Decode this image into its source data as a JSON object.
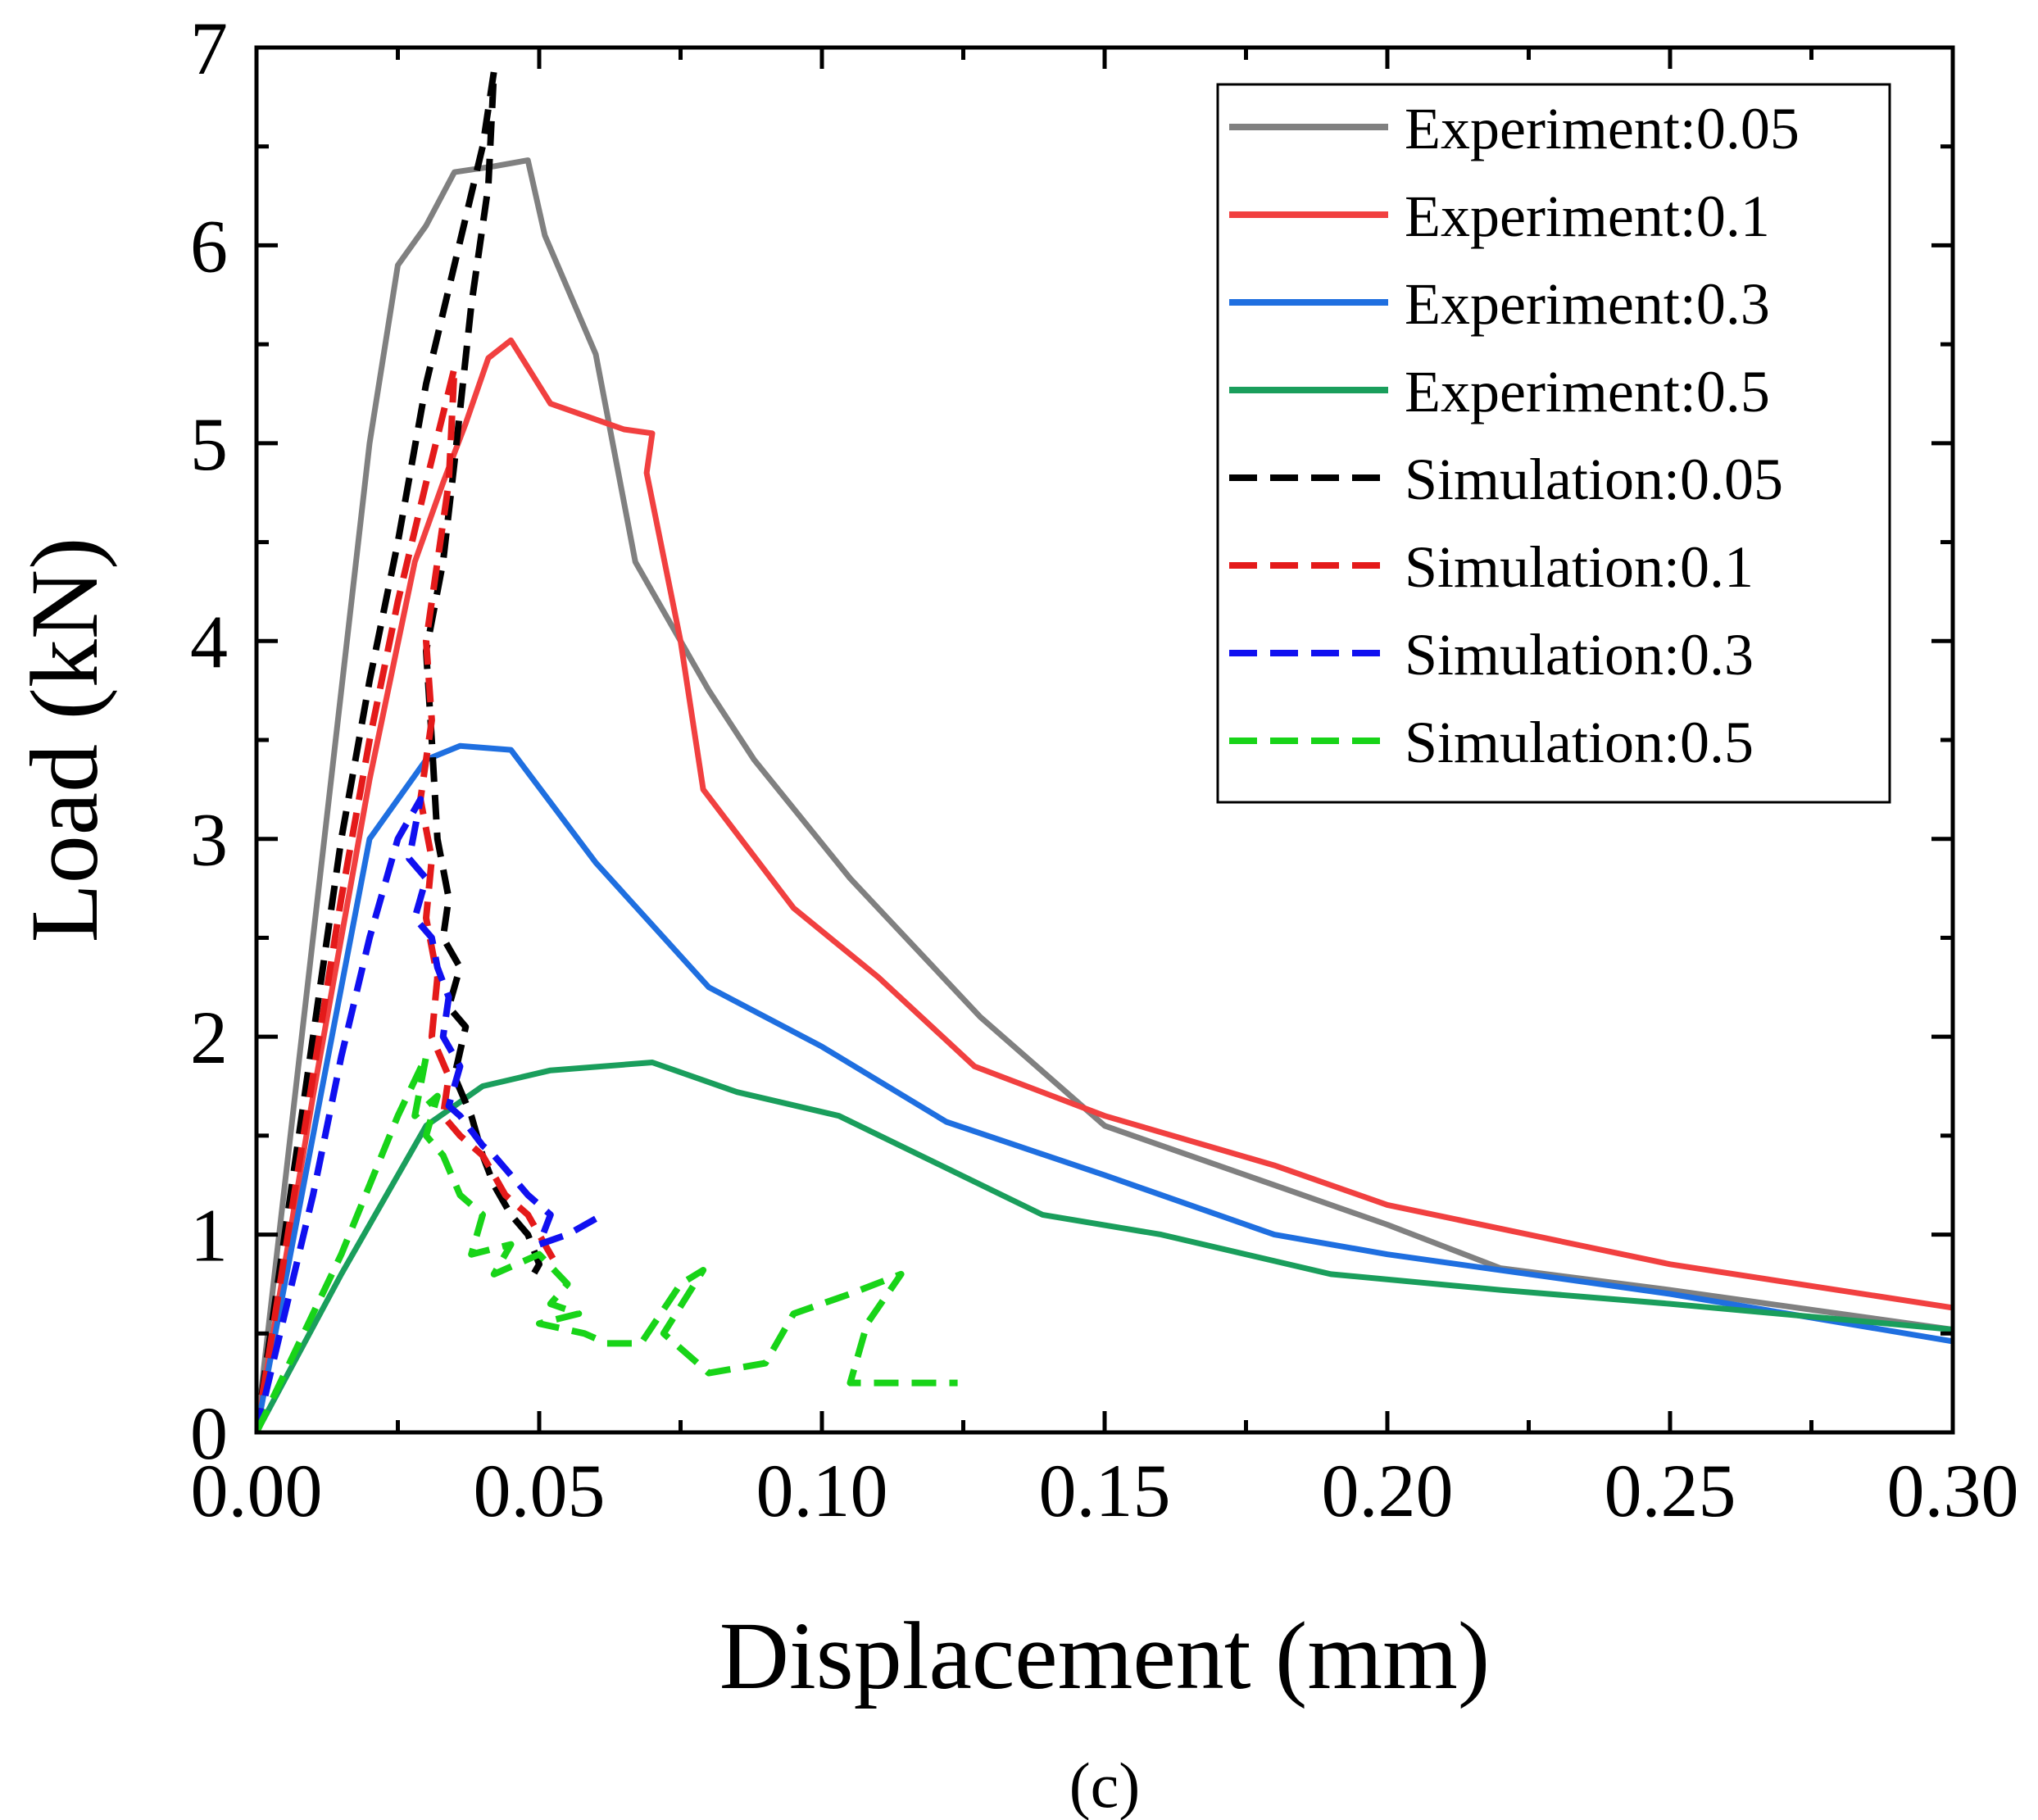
{
  "panel_label": "(c)",
  "chart_data": {
    "type": "line",
    "title": "",
    "xlabel": "Displacement (mm)",
    "ylabel": "Load (kN)",
    "xlim": [
      0,
      0.3
    ],
    "ylim": [
      0,
      7
    ],
    "x_ticks": [
      "0.00",
      "0.05",
      "0.10",
      "0.15",
      "0.20",
      "0.25",
      "0.30"
    ],
    "y_ticks": [
      "0",
      "1",
      "2",
      "3",
      "4",
      "5",
      "6",
      "7"
    ],
    "grid": false,
    "legend_position": "top-right",
    "series": [
      {
        "name": "Experiment:0.05",
        "color": "#808080",
        "dash": "solid",
        "points": [
          [
            0,
            0
          ],
          [
            0.01,
            2.5
          ],
          [
            0.02,
            5.0
          ],
          [
            0.025,
            5.9
          ],
          [
            0.03,
            6.1
          ],
          [
            0.035,
            6.37
          ],
          [
            0.042,
            6.4
          ],
          [
            0.048,
            6.43
          ],
          [
            0.051,
            6.05
          ],
          [
            0.06,
            5.45
          ],
          [
            0.067,
            4.4
          ],
          [
            0.08,
            3.75
          ],
          [
            0.088,
            3.4
          ],
          [
            0.105,
            2.8
          ],
          [
            0.128,
            2.1
          ],
          [
            0.15,
            1.55
          ],
          [
            0.18,
            1.25
          ],
          [
            0.2,
            1.05
          ],
          [
            0.22,
            0.83
          ],
          [
            0.25,
            0.72
          ],
          [
            0.3,
            0.52
          ]
        ]
      },
      {
        "name": "Experiment:0.1",
        "color": "#f14040",
        "dash": "solid",
        "points": [
          [
            0,
            0
          ],
          [
            0.01,
            1.7
          ],
          [
            0.02,
            3.3
          ],
          [
            0.028,
            4.4
          ],
          [
            0.033,
            4.8
          ],
          [
            0.037,
            5.1
          ],
          [
            0.041,
            5.43
          ],
          [
            0.045,
            5.52
          ],
          [
            0.052,
            5.2
          ],
          [
            0.065,
            5.07
          ],
          [
            0.07,
            5.05
          ],
          [
            0.069,
            4.85
          ],
          [
            0.075,
            4.0
          ],
          [
            0.079,
            3.25
          ],
          [
            0.095,
            2.65
          ],
          [
            0.11,
            2.3
          ],
          [
            0.127,
            1.85
          ],
          [
            0.15,
            1.6
          ],
          [
            0.18,
            1.35
          ],
          [
            0.2,
            1.15
          ],
          [
            0.25,
            0.85
          ],
          [
            0.3,
            0.63
          ]
        ]
      },
      {
        "name": "Experiment:0.3",
        "color": "#1f6fe0",
        "dash": "solid",
        "points": [
          [
            0,
            0
          ],
          [
            0.02,
            3.0
          ],
          [
            0.03,
            3.4
          ],
          [
            0.036,
            3.47
          ],
          [
            0.045,
            3.45
          ],
          [
            0.06,
            2.88
          ],
          [
            0.08,
            2.25
          ],
          [
            0.1,
            1.95
          ],
          [
            0.122,
            1.57
          ],
          [
            0.15,
            1.3
          ],
          [
            0.18,
            1.0
          ],
          [
            0.2,
            0.9
          ],
          [
            0.25,
            0.7
          ],
          [
            0.3,
            0.46
          ]
        ]
      },
      {
        "name": "Experiment:0.5",
        "color": "#1a9e5c",
        "dash": "solid",
        "points": [
          [
            0,
            0
          ],
          [
            0.015,
            0.8
          ],
          [
            0.03,
            1.55
          ],
          [
            0.04,
            1.75
          ],
          [
            0.052,
            1.83
          ],
          [
            0.07,
            1.87
          ],
          [
            0.085,
            1.72
          ],
          [
            0.103,
            1.6
          ],
          [
            0.139,
            1.1
          ],
          [
            0.16,
            1.0
          ],
          [
            0.19,
            0.8
          ],
          [
            0.22,
            0.72
          ],
          [
            0.25,
            0.65
          ],
          [
            0.3,
            0.52
          ]
        ]
      },
      {
        "name": "Simulation:0.05",
        "color": "#000000",
        "dash": "dashed",
        "points": [
          [
            0,
            0
          ],
          [
            0.005,
            1.0
          ],
          [
            0.01,
            2.0
          ],
          [
            0.015,
            3.0
          ],
          [
            0.02,
            3.8
          ],
          [
            0.025,
            4.5
          ],
          [
            0.03,
            5.3
          ],
          [
            0.035,
            5.9
          ],
          [
            0.04,
            6.5
          ],
          [
            0.042,
            6.88
          ],
          [
            0.041,
            6.3
          ],
          [
            0.038,
            5.7
          ],
          [
            0.035,
            4.9
          ],
          [
            0.033,
            4.4
          ],
          [
            0.03,
            3.95
          ],
          [
            0.031,
            3.5
          ],
          [
            0.032,
            3.0
          ],
          [
            0.034,
            2.7
          ],
          [
            0.033,
            2.5
          ],
          [
            0.036,
            2.35
          ],
          [
            0.034,
            2.15
          ],
          [
            0.037,
            2.05
          ],
          [
            0.035,
            1.8
          ],
          [
            0.038,
            1.6
          ],
          [
            0.04,
            1.4
          ],
          [
            0.042,
            1.25
          ],
          [
            0.045,
            1.1
          ],
          [
            0.048,
            1.0
          ],
          [
            0.05,
            0.85
          ],
          [
            0.049,
            0.8
          ]
        ]
      },
      {
        "name": "Simulation:0.1",
        "color": "#e41a1a",
        "dash": "dashed",
        "points": [
          [
            0,
            0
          ],
          [
            0.005,
            0.9
          ],
          [
            0.01,
            1.8
          ],
          [
            0.015,
            2.7
          ],
          [
            0.02,
            3.5
          ],
          [
            0.025,
            4.2
          ],
          [
            0.03,
            4.8
          ],
          [
            0.035,
            5.38
          ],
          [
            0.034,
            4.8
          ],
          [
            0.032,
            4.4
          ],
          [
            0.03,
            4.0
          ],
          [
            0.031,
            3.6
          ],
          [
            0.029,
            3.2
          ],
          [
            0.031,
            2.9
          ],
          [
            0.03,
            2.6
          ],
          [
            0.032,
            2.3
          ],
          [
            0.031,
            2.0
          ],
          [
            0.034,
            1.8
          ],
          [
            0.033,
            1.6
          ],
          [
            0.036,
            1.5
          ],
          [
            0.04,
            1.4
          ],
          [
            0.044,
            1.2
          ],
          [
            0.048,
            1.1
          ],
          [
            0.05,
            1.0
          ],
          [
            0.053,
            0.85
          ]
        ]
      },
      {
        "name": "Simulation:0.3",
        "color": "#1010f0",
        "dash": "dashed",
        "points": [
          [
            0,
            0
          ],
          [
            0.005,
            0.6
          ],
          [
            0.01,
            1.2
          ],
          [
            0.015,
            1.9
          ],
          [
            0.02,
            2.5
          ],
          [
            0.025,
            3.0
          ],
          [
            0.029,
            3.2
          ],
          [
            0.027,
            2.9
          ],
          [
            0.03,
            2.8
          ],
          [
            0.028,
            2.6
          ],
          [
            0.031,
            2.5
          ],
          [
            0.032,
            2.35
          ],
          [
            0.034,
            2.2
          ],
          [
            0.033,
            2.0
          ],
          [
            0.036,
            1.85
          ],
          [
            0.034,
            1.65
          ],
          [
            0.036,
            1.6
          ],
          [
            0.04,
            1.45
          ],
          [
            0.042,
            1.4
          ],
          [
            0.045,
            1.3
          ],
          [
            0.048,
            1.2
          ],
          [
            0.052,
            1.1
          ],
          [
            0.05,
            0.95
          ],
          [
            0.055,
            1.0
          ],
          [
            0.06,
            1.08
          ]
        ]
      },
      {
        "name": "Simulation:0.5",
        "color": "#18d418",
        "dash": "dashed",
        "points": [
          [
            0,
            0
          ],
          [
            0.005,
            0.3
          ],
          [
            0.01,
            0.6
          ],
          [
            0.015,
            0.9
          ],
          [
            0.02,
            1.25
          ],
          [
            0.025,
            1.6
          ],
          [
            0.03,
            1.9
          ],
          [
            0.028,
            1.6
          ],
          [
            0.032,
            1.7
          ],
          [
            0.03,
            1.5
          ],
          [
            0.033,
            1.4
          ],
          [
            0.036,
            1.2
          ],
          [
            0.04,
            1.1
          ],
          [
            0.038,
            0.9
          ],
          [
            0.045,
            0.95
          ],
          [
            0.042,
            0.8
          ],
          [
            0.05,
            0.9
          ],
          [
            0.055,
            0.75
          ],
          [
            0.052,
            0.65
          ],
          [
            0.057,
            0.6
          ],
          [
            0.05,
            0.55
          ],
          [
            0.058,
            0.5
          ],
          [
            0.062,
            0.45
          ],
          [
            0.068,
            0.45
          ],
          [
            0.075,
            0.75
          ],
          [
            0.079,
            0.82
          ],
          [
            0.072,
            0.5
          ],
          [
            0.08,
            0.3
          ],
          [
            0.09,
            0.35
          ],
          [
            0.095,
            0.6
          ],
          [
            0.105,
            0.7
          ],
          [
            0.114,
            0.8
          ],
          [
            0.108,
            0.55
          ],
          [
            0.105,
            0.25
          ],
          [
            0.115,
            0.25
          ],
          [
            0.124,
            0.25
          ]
        ]
      }
    ]
  }
}
